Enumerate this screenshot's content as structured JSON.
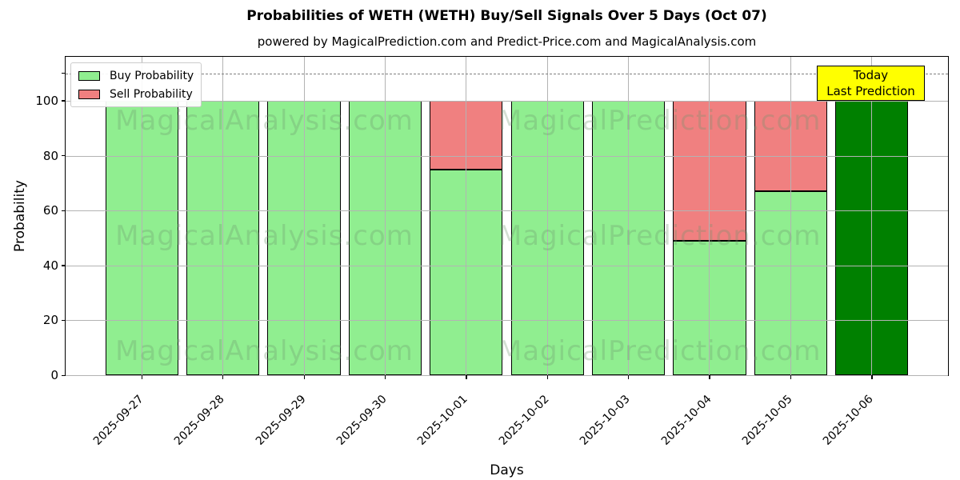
{
  "header": {
    "title": "Probabilities of WETH (WETH) Buy/Sell Signals Over 5 Days (Oct 07)",
    "subtitle": "powered by MagicalPrediction.com and Predict-Price.com and MagicalAnalysis.com"
  },
  "axes": {
    "xlabel": "Days",
    "ylabel": "Probability"
  },
  "legend": {
    "items": [
      {
        "label": "Buy Probability",
        "color": "#90EE90"
      },
      {
        "label": "Sell Probability",
        "color": "#F08080"
      }
    ]
  },
  "annotation_box": {
    "line1": "Today",
    "line2": "Last Prediction",
    "bg_color": "#FFFF00"
  },
  "watermark": {
    "left_text": "MagicalAnalysis.com",
    "right_text": "MagicalPrediction.com"
  },
  "colors": {
    "buy": "#90EE90",
    "sell": "#F08080",
    "today_bar": "#008000",
    "bar_edge": "#000000",
    "grid": "#B3B3B3",
    "dashed_line": "#7F7F7F",
    "watermark": "rgba(110,150,110,0.30)"
  },
  "chart_data": {
    "type": "bar",
    "stacked": true,
    "title": "Probabilities of WETH (WETH) Buy/Sell Signals Over 5 Days (Oct 07)",
    "xlabel": "Days",
    "ylabel": "Probability",
    "categories": [
      "2025-09-27",
      "2025-09-28",
      "2025-09-29",
      "2025-09-30",
      "2025-10-01",
      "2025-10-02",
      "2025-10-03",
      "2025-10-04",
      "2025-10-05",
      "2025-10-06"
    ],
    "series": [
      {
        "name": "Buy Probability",
        "color": "#90EE90",
        "values": [
          100,
          100,
          100,
          100,
          75,
          100,
          100,
          49,
          67,
          100
        ]
      },
      {
        "name": "Sell Probability",
        "color": "#F08080",
        "values": [
          0,
          0,
          0,
          0,
          25,
          0,
          0,
          51,
          33,
          0
        ]
      }
    ],
    "today": {
      "category": "2025-10-06",
      "index": 9,
      "bar_color": "#008000",
      "annotation": "Today / Last Prediction"
    },
    "ylim": [
      0,
      116
    ],
    "yticks": [
      0,
      20,
      40,
      60,
      80,
      100
    ],
    "dashed_hline": 110,
    "grid": true,
    "legend_position": "upper left"
  }
}
